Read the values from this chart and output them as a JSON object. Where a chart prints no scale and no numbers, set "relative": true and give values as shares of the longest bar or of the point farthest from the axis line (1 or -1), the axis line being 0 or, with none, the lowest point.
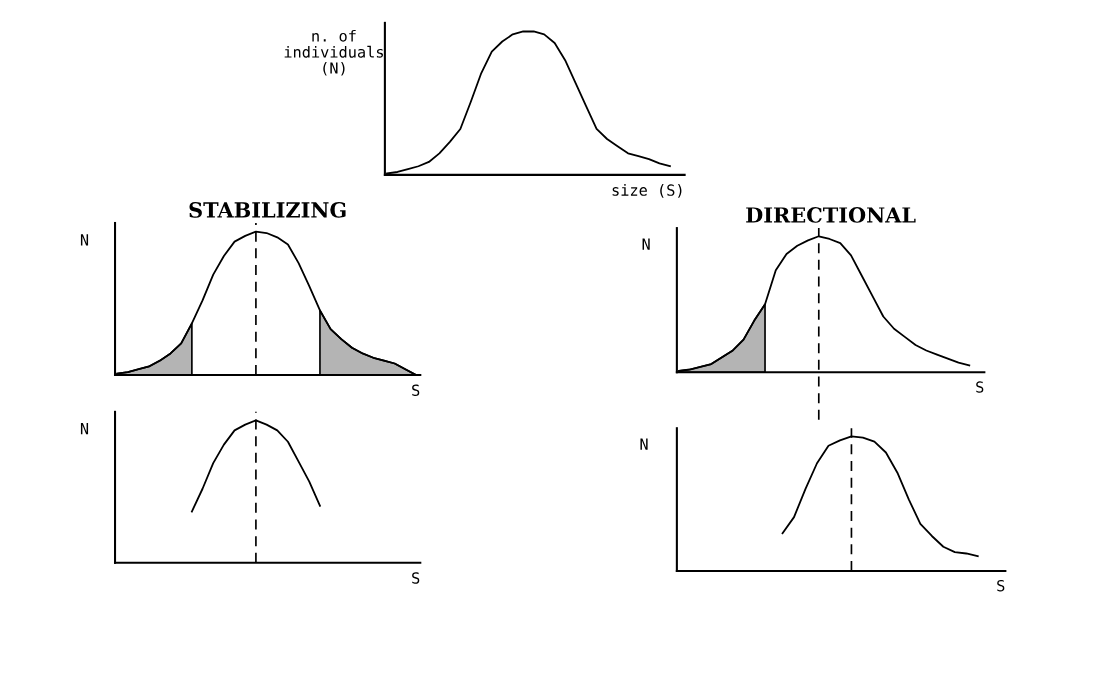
{
  "chart_data": [
    {
      "type": "line",
      "relative": true,
      "xlabel": "size (S)",
      "ylabel": "n. of\nindividuals\n(N)",
      "categories": [
        null,
        null,
        null,
        null,
        null,
        null,
        null,
        null,
        null,
        null,
        null,
        null,
        null,
        null,
        null,
        null,
        null,
        null,
        null,
        null,
        null,
        null,
        null,
        null,
        null,
        null,
        null,
        null,
        null
      ],
      "series": [
        {
          "color": "#000000",
          "values": [
            0.01,
            0.02,
            0.04,
            0.06,
            0.09,
            0.15,
            0.23,
            0.32,
            0.51,
            0.71,
            0.86,
            0.93,
            0.98,
            1.0,
            1.0,
            0.98,
            0.92,
            0.8,
            0.64,
            0.48,
            0.32,
            0.25,
            0.2,
            0.15,
            0.13,
            0.11,
            0.08,
            0.06,
            null
          ]
        }
      ]
    },
    {
      "type": "line",
      "relative": true,
      "title": "STABILIZING",
      "xlabel": "S",
      "ylabel": "N",
      "categories": [
        null,
        null,
        null,
        null,
        null,
        null,
        null,
        null,
        null,
        null,
        null,
        null,
        null,
        null,
        null,
        null,
        null,
        null,
        null,
        null,
        null,
        null,
        null,
        null,
        null,
        null,
        null,
        null,
        null
      ],
      "series": [
        {
          "type": "area",
          "color": "#b4b4b4",
          "values": [
            0.01,
            0.02,
            0.04,
            0.06,
            0.1,
            0.15,
            0.22,
            0.36,
            null,
            null,
            null,
            null,
            null,
            null,
            null,
            null,
            null,
            null,
            null,
            null,
            null,
            null,
            null,
            null,
            null,
            null,
            null,
            null,
            null
          ]
        },
        {
          "type": "area",
          "color": "#b4b4b4",
          "values": [
            null,
            null,
            null,
            null,
            null,
            null,
            null,
            null,
            null,
            null,
            null,
            null,
            null,
            null,
            null,
            null,
            null,
            null,
            null,
            0.45,
            0.32,
            0.25,
            0.19,
            0.15,
            0.12,
            0.1,
            0.08,
            0.04,
            0.0
          ]
        },
        {
          "color": "#000000",
          "values": [
            0.01,
            0.02,
            0.04,
            0.06,
            0.1,
            0.15,
            0.22,
            0.36,
            0.52,
            0.7,
            0.83,
            0.93,
            0.97,
            1.0,
            0.99,
            0.96,
            0.91,
            0.78,
            0.62,
            0.45,
            0.32,
            0.25,
            0.19,
            0.15,
            0.12,
            0.1,
            0.08,
            0.04,
            0.0
          ]
        }
      ]
    },
    {
      "type": "line",
      "relative": true,
      "xlabel": "S",
      "ylabel": "N",
      "categories": [
        null,
        null,
        null,
        null,
        null,
        null,
        null,
        null,
        null,
        null,
        null,
        null,
        null,
        null,
        null,
        null,
        null,
        null,
        null,
        null,
        null,
        null,
        null,
        null,
        null,
        null,
        null,
        null,
        null
      ],
      "series": [
        {
          "color": "#000000",
          "values": [
            null,
            null,
            null,
            null,
            null,
            null,
            null,
            0.36,
            0.52,
            0.7,
            0.83,
            0.93,
            0.97,
            1.0,
            0.97,
            0.93,
            0.85,
            0.71,
            0.57,
            0.4,
            null,
            null,
            null,
            null,
            null,
            null,
            null,
            null,
            null
          ]
        }
      ]
    },
    {
      "type": "line",
      "relative": true,
      "title": "DIRECTIONAL",
      "xlabel": "S",
      "ylabel": "N",
      "categories": [
        null,
        null,
        null,
        null,
        null,
        null,
        null,
        null,
        null,
        null,
        null,
        null,
        null,
        null,
        null,
        null,
        null,
        null,
        null,
        null,
        null,
        null,
        null,
        null,
        null,
        null,
        null,
        null,
        null
      ],
      "series": [
        {
          "type": "area",
          "color": "#b4b4b4",
          "values": [
            0.01,
            0.02,
            0.04,
            0.06,
            0.11,
            0.16,
            0.24,
            0.38,
            0.5,
            null,
            null,
            null,
            null,
            null,
            null,
            null,
            null,
            null,
            null,
            null,
            null,
            null,
            null,
            null,
            null,
            null,
            null,
            null,
            null
          ]
        },
        {
          "color": "#000000",
          "values": [
            0.01,
            0.02,
            0.04,
            0.06,
            0.11,
            0.16,
            0.24,
            0.38,
            0.5,
            0.75,
            0.87,
            0.93,
            0.97,
            1.0,
            0.98,
            0.95,
            0.86,
            0.71,
            0.56,
            0.41,
            0.32,
            0.26,
            0.2,
            0.16,
            0.13,
            0.1,
            0.07,
            0.05,
            null
          ]
        }
      ]
    },
    {
      "type": "line",
      "relative": true,
      "xlabel": "S",
      "ylabel": "N",
      "categories": [
        null,
        null,
        null,
        null,
        null,
        null,
        null,
        null,
        null,
        null,
        null,
        null,
        null,
        null,
        null,
        null,
        null,
        null,
        null,
        null,
        null,
        null,
        null,
        null,
        null,
        null,
        null,
        null,
        null
      ],
      "series": [
        {
          "color": "#000000",
          "values": [
            null,
            null,
            null,
            null,
            null,
            null,
            null,
            null,
            null,
            0.28,
            0.4,
            0.61,
            0.8,
            0.93,
            0.97,
            1.0,
            0.99,
            0.96,
            0.88,
            0.73,
            0.53,
            0.35,
            0.26,
            0.18,
            0.14,
            0.13,
            0.11,
            null,
            null
          ]
        }
      ]
    }
  ]
}
